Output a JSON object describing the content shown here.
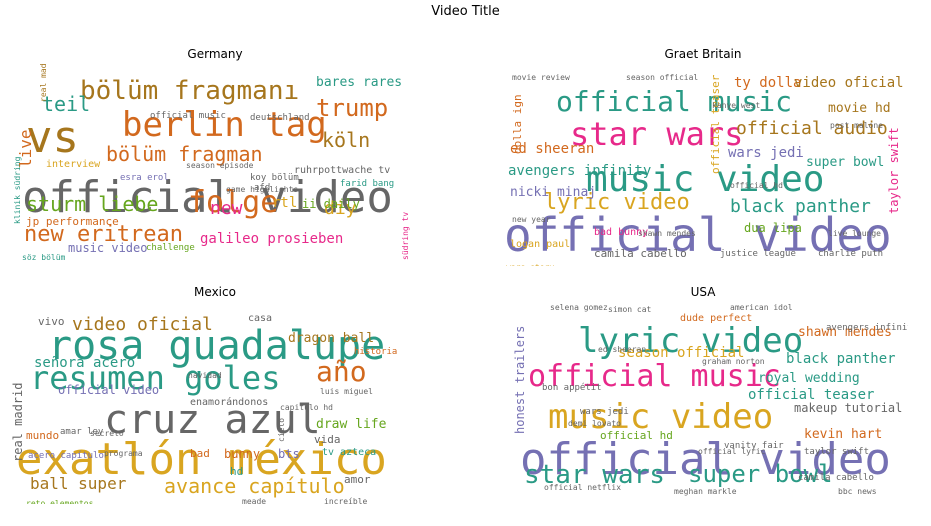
{
  "figure": {
    "title": "Video Title"
  },
  "colors": {
    "teal": "#2a9a85",
    "orange": "#d2691e",
    "purple": "#7570b3",
    "pink": "#e7298a",
    "green": "#66a61e",
    "gold": "#d9a520",
    "brown": "#a6761d",
    "gray": "#666666"
  },
  "chart_data": [
    {
      "type": "wordcloud",
      "title": "Germany",
      "words": [
        {
          "text": "official video",
          "color": "#666666",
          "size": 44
        },
        {
          "text": "vs",
          "color": "#a6761d",
          "size": 44
        },
        {
          "text": "berlin tag",
          "color": "#d2691e",
          "size": 34
        },
        {
          "text": "bölüm fragmanı",
          "color": "#a6761d",
          "size": 26
        },
        {
          "text": "folge",
          "color": "#d2691e",
          "size": 30
        },
        {
          "text": "bölüm fragman",
          "color": "#d2691e",
          "size": 20
        },
        {
          "text": "trump",
          "color": "#d2691e",
          "size": 24
        },
        {
          "text": "new eritrean",
          "color": "#d2691e",
          "size": 22
        },
        {
          "text": "sturm liebe",
          "color": "#66a61e",
          "size": 20
        },
        {
          "text": "köln",
          "color": "#a6761d",
          "size": 20
        },
        {
          "text": "teil",
          "color": "#2a9a85",
          "size": 20
        },
        {
          "text": "new",
          "color": "#e7298a",
          "size": 18
        },
        {
          "text": "diy",
          "color": "#d9a520",
          "size": 18
        },
        {
          "text": "live",
          "color": "#d2691e",
          "size": 16
        },
        {
          "text": "galileo prosieben",
          "color": "#e7298a",
          "size": 14
        },
        {
          "text": "bares rares",
          "color": "#2a9a85",
          "size": 13
        },
        {
          "text": "music video",
          "color": "#7570b3",
          "size": 12
        },
        {
          "text": "jp performance",
          "color": "#d2691e",
          "size": 11
        },
        {
          "text": "ruhrpottwache tv",
          "color": "#666666",
          "size": 10
        },
        {
          "text": "rtl",
          "color": "#d9a520",
          "size": 14
        },
        {
          "text": "ii daily",
          "color": "#66a61e",
          "size": 12
        },
        {
          "text": "farid bang",
          "color": "#2a9a85",
          "size": 9
        },
        {
          "text": "koy bölüm",
          "color": "#666666",
          "size": 9
        },
        {
          "text": "deutschland",
          "color": "#666666",
          "size": 9
        },
        {
          "text": "official music",
          "color": "#666666",
          "size": 9
        },
        {
          "text": "real madrid",
          "color": "#a6761d",
          "size": 8
        },
        {
          "text": "interview",
          "color": "#d9a520",
          "size": 10
        },
        {
          "text": "esra erol",
          "color": "#7570b3",
          "size": 9
        },
        {
          "text": "season episode",
          "color": "#666666",
          "size": 8
        },
        {
          "text": "game highlights",
          "color": "#666666",
          "size": 8
        },
        {
          "text": "afd",
          "color": "#666666",
          "size": 9
        },
        {
          "text": "challenge",
          "color": "#66a61e",
          "size": 9
        },
        {
          "text": "söz bölüm",
          "color": "#2a9a85",
          "size": 8
        },
        {
          "text": "klinik südring",
          "color": "#2a9a85",
          "size": 8
        },
        {
          "text": "südring tv",
          "color": "#e7298a",
          "size": 8
        }
      ]
    },
    {
      "type": "wordcloud",
      "title": "Graet Britain",
      "words": [
        {
          "text": "official video",
          "color": "#7570b3",
          "size": 46
        },
        {
          "text": "music video",
          "color": "#2a9a85",
          "size": 36
        },
        {
          "text": "star wars",
          "color": "#e7298a",
          "size": 32
        },
        {
          "text": "official music",
          "color": "#2a9a85",
          "size": 28
        },
        {
          "text": "lyric video",
          "color": "#d9a520",
          "size": 22
        },
        {
          "text": "black panther",
          "color": "#2a9a85",
          "size": 18
        },
        {
          "text": "official audio",
          "color": "#a6761d",
          "size": 18
        },
        {
          "text": "ty dolla",
          "color": "#d2691e",
          "size": 14
        },
        {
          "text": "video oficial",
          "color": "#a6761d",
          "size": 14
        },
        {
          "text": "ed sheeran",
          "color": "#d2691e",
          "size": 14
        },
        {
          "text": "avengers infinity",
          "color": "#2a9a85",
          "size": 14
        },
        {
          "text": "wars jedi",
          "color": "#7570b3",
          "size": 14
        },
        {
          "text": "movie hd",
          "color": "#a6761d",
          "size": 13
        },
        {
          "text": "super bowl",
          "color": "#2a9a85",
          "size": 13
        },
        {
          "text": "nicki minaj",
          "color": "#7570b3",
          "size": 13
        },
        {
          "text": "taylor swift",
          "color": "#e7298a",
          "size": 12
        },
        {
          "text": "official teaser",
          "color": "#d9a520",
          "size": 11
        },
        {
          "text": "dua lipa",
          "color": "#66a61e",
          "size": 12
        },
        {
          "text": "dolla ign",
          "color": "#d2691e",
          "size": 11
        },
        {
          "text": "camila cabello",
          "color": "#666666",
          "size": 11
        },
        {
          "text": "justice league",
          "color": "#666666",
          "size": 9
        },
        {
          "text": "charlie puth",
          "color": "#666666",
          "size": 9
        },
        {
          "text": "logan paul",
          "color": "#d9a520",
          "size": 10
        },
        {
          "text": "bad bunny",
          "color": "#e7298a",
          "size": 10
        },
        {
          "text": "kanye west",
          "color": "#666666",
          "size": 8
        },
        {
          "text": "post malone",
          "color": "#666666",
          "size": 8
        },
        {
          "text": "movie review",
          "color": "#666666",
          "size": 8
        },
        {
          "text": "season official",
          "color": "#666666",
          "size": 8
        },
        {
          "text": "official hd",
          "color": "#666666",
          "size": 8
        },
        {
          "text": "live lounge",
          "color": "#666666",
          "size": 8
        },
        {
          "text": "wars story",
          "color": "#d9a520",
          "size": 8
        },
        {
          "text": "shawn mendes",
          "color": "#666666",
          "size": 8
        },
        {
          "text": "new year",
          "color": "#666666",
          "size": 8
        }
      ]
    },
    {
      "type": "wordcloud",
      "title": "Mexico",
      "words": [
        {
          "text": "exatlón méxico",
          "color": "#d9a520",
          "size": 44
        },
        {
          "text": "rosa guadalupe",
          "color": "#2a9a85",
          "size": 40
        },
        {
          "text": "cruz azul",
          "color": "#666666",
          "size": 40
        },
        {
          "text": "resumen goles",
          "color": "#2a9a85",
          "size": 32
        },
        {
          "text": "año",
          "color": "#d2691e",
          "size": 28
        },
        {
          "text": "avance capítulo",
          "color": "#d9a520",
          "size": 20
        },
        {
          "text": "video oficial",
          "color": "#a6761d",
          "size": 18
        },
        {
          "text": "ball super",
          "color": "#a6761d",
          "size": 16
        },
        {
          "text": "señora acero",
          "color": "#2a9a85",
          "size": 14
        },
        {
          "text": "dragon ball",
          "color": "#a6761d",
          "size": 13
        },
        {
          "text": "draw life",
          "color": "#66a61e",
          "size": 13
        },
        {
          "text": "real madrid",
          "color": "#666666",
          "size": 12
        },
        {
          "text": "official video",
          "color": "#7570b3",
          "size": 12
        },
        {
          "text": "enamorándonos",
          "color": "#666666",
          "size": 10
        },
        {
          "text": "bunny",
          "color": "#d2691e",
          "size": 12
        },
        {
          "text": "vida",
          "color": "#666666",
          "size": 11
        },
        {
          "text": "amor",
          "color": "#666666",
          "size": 11
        },
        {
          "text": "mundo",
          "color": "#d2691e",
          "size": 11
        },
        {
          "text": "vivo",
          "color": "#666666",
          "size": 11
        },
        {
          "text": "tv azteca",
          "color": "#2a9a85",
          "size": 10
        },
        {
          "text": "bts",
          "color": "#7570b3",
          "size": 12
        },
        {
          "text": "hd",
          "color": "#2a9a85",
          "size": 11
        },
        {
          "text": "bad",
          "color": "#d2691e",
          "size": 11
        },
        {
          "text": "luis miguel",
          "color": "#666666",
          "size": 8
        },
        {
          "text": "casa",
          "color": "#666666",
          "size": 10
        },
        {
          "text": "historia",
          "color": "#d2691e",
          "size": 9
        },
        {
          "text": "capitulo hd",
          "color": "#666666",
          "size": 8
        },
        {
          "text": "amar ley",
          "color": "#666666",
          "size": 9
        },
        {
          "text": "acero capítulo",
          "color": "#7570b3",
          "size": 9
        },
        {
          "text": "programa",
          "color": "#666666",
          "size": 8
        },
        {
          "text": "reto elementos",
          "color": "#66a61e",
          "size": 8
        },
        {
          "text": "increíble",
          "color": "#666666",
          "size": 8
        },
        {
          "text": "secreto",
          "color": "#666666",
          "size": 8
        },
        {
          "text": "navidad",
          "color": "#666666",
          "size": 8
        },
        {
          "text": "meade",
          "color": "#666666",
          "size": 8
        },
        {
          "text": "cielo",
          "color": "#666666",
          "size": 8
        }
      ]
    },
    {
      "type": "wordcloud",
      "title": "USA",
      "words": [
        {
          "text": "official video",
          "color": "#7570b3",
          "size": 44
        },
        {
          "text": "music video",
          "color": "#d9a520",
          "size": 34
        },
        {
          "text": "lyric video",
          "color": "#2a9a85",
          "size": 34
        },
        {
          "text": "official music",
          "color": "#e7298a",
          "size": 30
        },
        {
          "text": "star wars",
          "color": "#2a9a85",
          "size": 26
        },
        {
          "text": "super bowl",
          "color": "#2a9a85",
          "size": 24
        },
        {
          "text": "season official",
          "color": "#d9a520",
          "size": 14
        },
        {
          "text": "black panther",
          "color": "#2a9a85",
          "size": 14
        },
        {
          "text": "official teaser",
          "color": "#2a9a85",
          "size": 14
        },
        {
          "text": "royal wedding",
          "color": "#2a9a85",
          "size": 13
        },
        {
          "text": "shawn mendes",
          "color": "#d2691e",
          "size": 13
        },
        {
          "text": "makeup tutorial",
          "color": "#666666",
          "size": 12
        },
        {
          "text": "kevin hart",
          "color": "#d2691e",
          "size": 13
        },
        {
          "text": "honest trailers",
          "color": "#7570b3",
          "size": 12
        },
        {
          "text": "official hd",
          "color": "#66a61e",
          "size": 11
        },
        {
          "text": "dude perfect",
          "color": "#d2691e",
          "size": 10
        },
        {
          "text": "avengers infinity",
          "color": "#666666",
          "size": 9
        },
        {
          "text": "taylor swift",
          "color": "#666666",
          "size": 9
        },
        {
          "text": "vanity fair",
          "color": "#666666",
          "size": 9
        },
        {
          "text": "wars jedi",
          "color": "#666666",
          "size": 9
        },
        {
          "text": "bon appétit",
          "color": "#666666",
          "size": 9
        },
        {
          "text": "camila cabello",
          "color": "#666666",
          "size": 9
        },
        {
          "text": "american idol",
          "color": "#666666",
          "size": 8
        },
        {
          "text": "selena gomez",
          "color": "#666666",
          "size": 8
        },
        {
          "text": "simon cat",
          "color": "#666666",
          "size": 8
        },
        {
          "text": "demi lovato",
          "color": "#666666",
          "size": 8
        },
        {
          "text": "graham norton",
          "color": "#666666",
          "size": 8
        },
        {
          "text": "ed sheeran",
          "color": "#666666",
          "size": 8
        },
        {
          "text": "meghan markle",
          "color": "#666666",
          "size": 8
        },
        {
          "text": "official lyric",
          "color": "#666666",
          "size": 8
        },
        {
          "text": "official netflix",
          "color": "#666666",
          "size": 8
        },
        {
          "text": "bbc news",
          "color": "#666666",
          "size": 8
        }
      ]
    }
  ]
}
